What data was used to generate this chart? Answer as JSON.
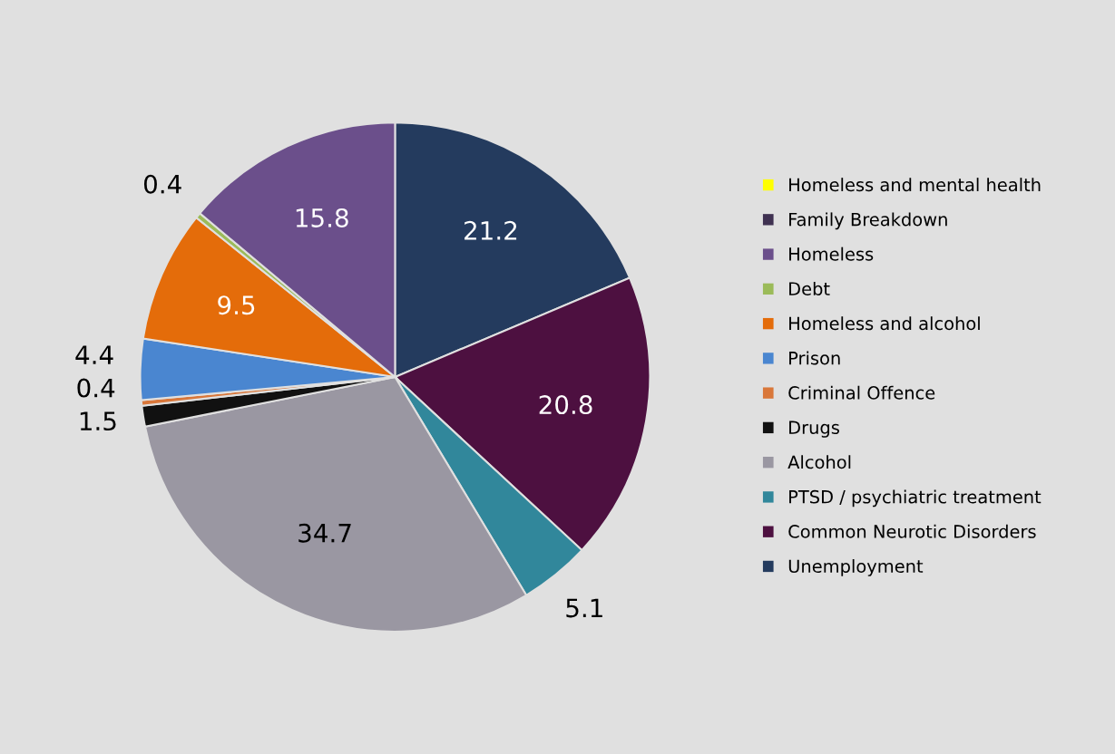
{
  "chart_data": {
    "type": "pie",
    "categories": [
      "Unemployment",
      "Common Neurotic Disorders",
      "PTSD / psychiatric treatment",
      "Alcohol",
      "Drugs",
      "Criminal Offence",
      "Prison",
      "Homeless and alcohol",
      "Debt",
      "Homeless",
      "Family Breakdown",
      "Homeless and mental health"
    ],
    "values": [
      21.2,
      20.8,
      5.1,
      34.7,
      1.5,
      0.4,
      4.4,
      9.5,
      0.4,
      15.8,
      0,
      0
    ],
    "colors": [
      "#243b5e",
      "#4d1040",
      "#31879b",
      "#9a97a2",
      "#111111",
      "#d9773a",
      "#4a86d0",
      "#e46c0a",
      "#9bbb59",
      "#6b4f8b",
      "#3f3151",
      "#ffff00"
    ],
    "data_labels": true,
    "legend": "right"
  }
}
